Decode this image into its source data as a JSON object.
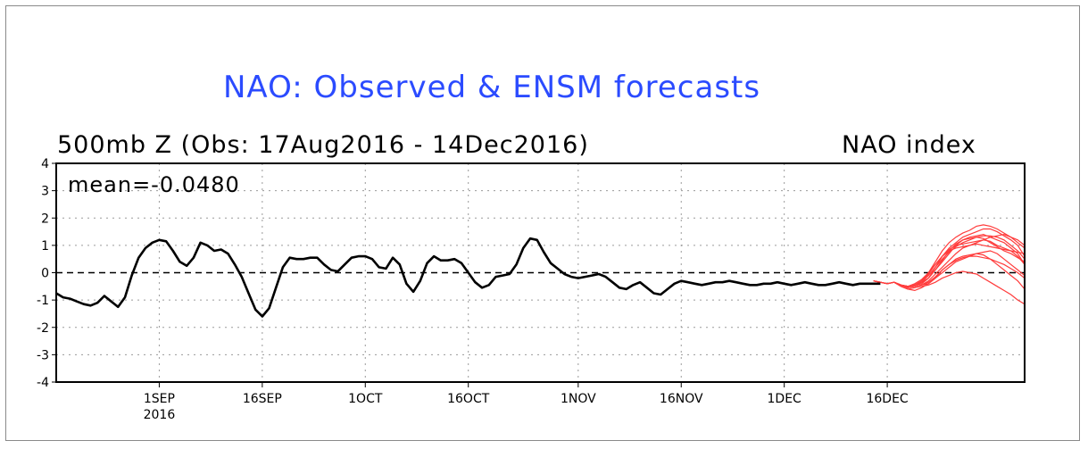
{
  "chart_data": {
    "type": "line",
    "title": "NAO: Observed & ENSM forecasts",
    "subtitle": "500mb Z (Obs: 17Aug2016 - 14Dec2016)",
    "ylabel": "NAO index",
    "annotation": "mean=-0.0480",
    "ylim": [
      -4,
      4
    ],
    "yticks": [
      -4,
      -3,
      -2,
      -1,
      0,
      1,
      2,
      3,
      4
    ],
    "yticks_labels": [
      "-4",
      "-3",
      "-2",
      "-1",
      "0",
      "1",
      "2",
      "3",
      "4"
    ],
    "xlim": [
      0,
      141
    ],
    "xticks": [
      {
        "day": 15,
        "label": "1SEP",
        "sublabel": "2016"
      },
      {
        "day": 30,
        "label": "16SEP",
        "sublabel": ""
      },
      {
        "day": 45,
        "label": "1OCT",
        "sublabel": ""
      },
      {
        "day": 60,
        "label": "16OCT",
        "sublabel": ""
      },
      {
        "day": 76,
        "label": "1NOV",
        "sublabel": ""
      },
      {
        "day": 91,
        "label": "16NOV",
        "sublabel": ""
      },
      {
        "day": 106,
        "label": "1DEC",
        "sublabel": ""
      },
      {
        "day": 121,
        "label": "16DEC",
        "sublabel": ""
      }
    ],
    "grid": true,
    "observed": {
      "color": "#000000",
      "x": [
        0,
        1,
        2,
        3,
        4,
        5,
        6,
        7,
        8,
        9,
        10,
        11,
        12,
        13,
        14,
        15,
        16,
        17,
        18,
        19,
        20,
        21,
        22,
        23,
        24,
        25,
        26,
        27,
        28,
        29,
        30,
        31,
        32,
        33,
        34,
        35,
        36,
        37,
        38,
        39,
        40,
        41,
        42,
        43,
        44,
        45,
        46,
        47,
        48,
        49,
        50,
        51,
        52,
        53,
        54,
        55,
        56,
        57,
        58,
        59,
        60,
        61,
        62,
        63,
        64,
        65,
        66,
        67,
        68,
        69,
        70,
        71,
        72,
        73,
        74,
        75,
        76,
        77,
        78,
        79,
        80,
        81,
        82,
        83,
        84,
        85,
        86,
        87,
        88,
        89,
        90,
        91,
        92,
        93,
        94,
        95,
        96,
        97,
        98,
        99,
        100,
        101,
        102,
        103,
        104,
        105,
        106,
        107,
        108,
        109,
        110,
        111,
        112,
        113,
        114,
        115,
        116,
        117,
        118,
        119,
        120
      ],
      "y": [
        -0.75,
        -0.9,
        -0.95,
        -1.05,
        -1.15,
        -1.2,
        -1.1,
        -0.85,
        -1.05,
        -1.25,
        -0.9,
        -0.1,
        0.55,
        0.9,
        1.1,
        1.2,
        1.15,
        0.8,
        0.4,
        0.25,
        0.55,
        1.1,
        1.0,
        0.8,
        0.85,
        0.7,
        0.3,
        -0.15,
        -0.75,
        -1.35,
        -1.6,
        -1.3,
        -0.55,
        0.2,
        0.55,
        0.5,
        0.5,
        0.55,
        0.55,
        0.3,
        0.1,
        0.05,
        0.3,
        0.55,
        0.6,
        0.6,
        0.5,
        0.2,
        0.15,
        0.55,
        0.3,
        -0.4,
        -0.7,
        -0.3,
        0.35,
        0.6,
        0.45,
        0.45,
        0.5,
        0.35,
        0.0,
        -0.35,
        -0.55,
        -0.45,
        -0.15,
        -0.1,
        -0.05,
        0.3,
        0.9,
        1.25,
        1.2,
        0.75,
        0.35,
        0.15,
        -0.05,
        -0.15,
        -0.2,
        -0.15,
        -0.1,
        -0.05,
        -0.15,
        -0.35,
        -0.55,
        -0.6,
        -0.45,
        -0.35,
        -0.55,
        -0.75,
        -0.8,
        -0.6,
        -0.4,
        -0.3,
        -0.35,
        -0.4,
        -0.45,
        -0.4,
        -0.35,
        -0.35,
        -0.3,
        -0.35,
        -0.4,
        -0.45,
        -0.45,
        -0.4,
        -0.4,
        -0.35,
        -0.4,
        -0.45,
        -0.4,
        -0.35,
        -0.4,
        -0.45,
        -0.45,
        -0.4,
        -0.35,
        -0.4,
        -0.45,
        -0.4,
        -0.4,
        -0.4,
        -0.4
      ]
    },
    "forecast_members": {
      "color": "#ff3b3b",
      "x": [
        119,
        120,
        121,
        122,
        123,
        124,
        125,
        126,
        127,
        128,
        129,
        130,
        131,
        132,
        133,
        134,
        135,
        136,
        137,
        138,
        139,
        140,
        141
      ],
      "members": [
        [
          -0.3,
          -0.35,
          -0.4,
          -0.35,
          -0.45,
          -0.5,
          -0.45,
          -0.35,
          -0.2,
          0.2,
          0.6,
          0.9,
          1.1,
          1.3,
          1.4,
          1.5,
          1.6,
          1.6,
          1.5,
          1.35,
          1.2,
          1.0,
          0.6
        ],
        [
          -0.3,
          -0.35,
          -0.4,
          -0.35,
          -0.45,
          -0.5,
          -0.4,
          -0.25,
          0.0,
          0.4,
          0.8,
          1.1,
          1.3,
          1.45,
          1.55,
          1.7,
          1.75,
          1.7,
          1.6,
          1.45,
          1.3,
          1.2,
          1.0
        ],
        [
          -0.3,
          -0.35,
          -0.4,
          -0.35,
          -0.45,
          -0.5,
          -0.45,
          -0.4,
          -0.2,
          0.1,
          0.4,
          0.7,
          1.0,
          1.2,
          1.3,
          1.35,
          1.4,
          1.3,
          1.2,
          1.1,
          0.9,
          0.7,
          0.3
        ],
        [
          -0.3,
          -0.35,
          -0.4,
          -0.35,
          -0.45,
          -0.55,
          -0.5,
          -0.45,
          -0.4,
          -0.2,
          0.0,
          0.2,
          0.4,
          0.5,
          0.6,
          0.7,
          0.75,
          0.8,
          0.7,
          0.5,
          0.3,
          0.1,
          -0.1
        ],
        [
          -0.3,
          -0.35,
          -0.4,
          -0.35,
          -0.5,
          -0.6,
          -0.55,
          -0.5,
          -0.45,
          -0.35,
          -0.2,
          -0.1,
          0.0,
          0.05,
          0.0,
          -0.05,
          -0.2,
          -0.35,
          -0.5,
          -0.65,
          -0.8,
          -1.0,
          -1.15
        ],
        [
          -0.3,
          -0.35,
          -0.4,
          -0.35,
          -0.5,
          -0.6,
          -0.65,
          -0.55,
          -0.4,
          -0.2,
          0.1,
          0.3,
          0.5,
          0.6,
          0.65,
          0.7,
          0.65,
          0.5,
          0.3,
          0.1,
          -0.1,
          -0.3,
          -0.6
        ],
        [
          -0.3,
          -0.35,
          -0.4,
          -0.35,
          -0.45,
          -0.5,
          -0.45,
          -0.3,
          -0.05,
          0.3,
          0.6,
          0.85,
          1.0,
          1.05,
          1.1,
          1.15,
          1.2,
          1.3,
          1.35,
          1.4,
          1.3,
          1.1,
          0.9
        ],
        [
          -0.3,
          -0.35,
          -0.4,
          -0.35,
          -0.45,
          -0.5,
          -0.45,
          -0.35,
          -0.1,
          0.2,
          0.5,
          0.75,
          0.95,
          1.1,
          1.2,
          1.3,
          1.35,
          1.35,
          1.3,
          1.2,
          1.0,
          0.8,
          0.5
        ],
        [
          -0.3,
          -0.35,
          -0.4,
          -0.35,
          -0.45,
          -0.55,
          -0.5,
          -0.45,
          -0.3,
          -0.05,
          0.2,
          0.45,
          0.7,
          0.9,
          1.0,
          1.05,
          1.0,
          0.95,
          0.9,
          0.85,
          0.8,
          0.6,
          0.3
        ],
        [
          -0.3,
          -0.35,
          -0.4,
          -0.35,
          -0.45,
          -0.5,
          -0.45,
          -0.4,
          -0.2,
          0.1,
          0.45,
          0.8,
          1.05,
          1.2,
          1.25,
          1.3,
          1.25,
          1.1,
          0.95,
          0.8,
          0.7,
          0.55,
          0.4
        ],
        [
          -0.3,
          -0.35,
          -0.4,
          -0.35,
          -0.45,
          -0.5,
          -0.45,
          -0.3,
          0.0,
          0.3,
          0.6,
          0.8,
          0.9,
          0.95,
          1.0,
          1.1,
          1.2,
          1.15,
          1.0,
          0.9,
          0.8,
          0.75,
          0.7
        ],
        [
          -0.3,
          -0.35,
          -0.4,
          -0.35,
          -0.45,
          -0.55,
          -0.5,
          -0.45,
          -0.35,
          -0.15,
          0.1,
          0.3,
          0.45,
          0.55,
          0.6,
          0.6,
          0.55,
          0.5,
          0.4,
          0.3,
          0.15,
          0.0,
          -0.2
        ]
      ]
    }
  }
}
